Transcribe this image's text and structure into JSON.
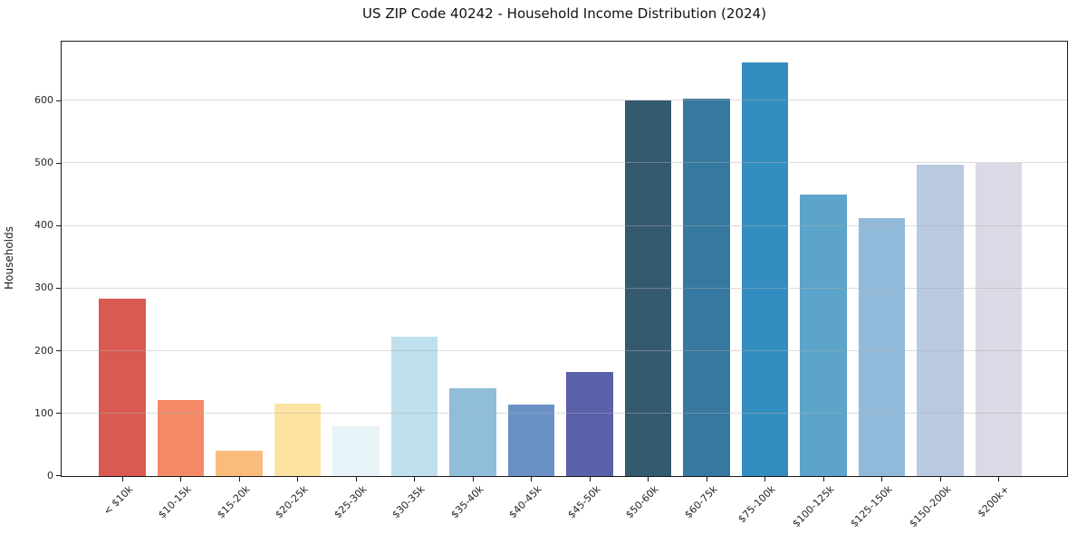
{
  "figure": {
    "background": "#ffffff"
  },
  "chart_data": {
    "type": "bar",
    "title": "US ZIP Code 40242 - Household Income Distribution (2024)",
    "xlabel": "",
    "ylabel": "Households",
    "categories": [
      "< $10k",
      "$10-15k",
      "$15-20k",
      "$20-25k",
      "$25-30k",
      "$30-35k",
      "$35-40k",
      "$40-45k",
      "$45-50k",
      "$50-60k",
      "$60-75k",
      "$75-100k",
      "$100-125k",
      "$125-150k",
      "$150-200k",
      "$200k+"
    ],
    "values": [
      284,
      121,
      40,
      116,
      80,
      223,
      141,
      115,
      166,
      601,
      604,
      661,
      450,
      412,
      498,
      500
    ],
    "bar_colors": [
      "#d95a52",
      "#f58a67",
      "#f9bc7c",
      "#fde3a2",
      "#e7f3f7",
      "#bfe0ec",
      "#90bdda",
      "#6a91c4",
      "#5a60aa",
      "#345a70",
      "#36789f",
      "#348dc0",
      "#5ca4ca",
      "#90b9da",
      "#b9c9e0",
      "#d9dae6"
    ],
    "ylim": [
      0,
      694
    ],
    "yticks": [
      0,
      100,
      200,
      300,
      400,
      500,
      600
    ],
    "grid": "horizontal",
    "grid_color": "rgba(176,176,176,0.45)",
    "legend": "none",
    "x_tick_rotation_deg": 45,
    "axis_color": "#1a1a1a"
  }
}
